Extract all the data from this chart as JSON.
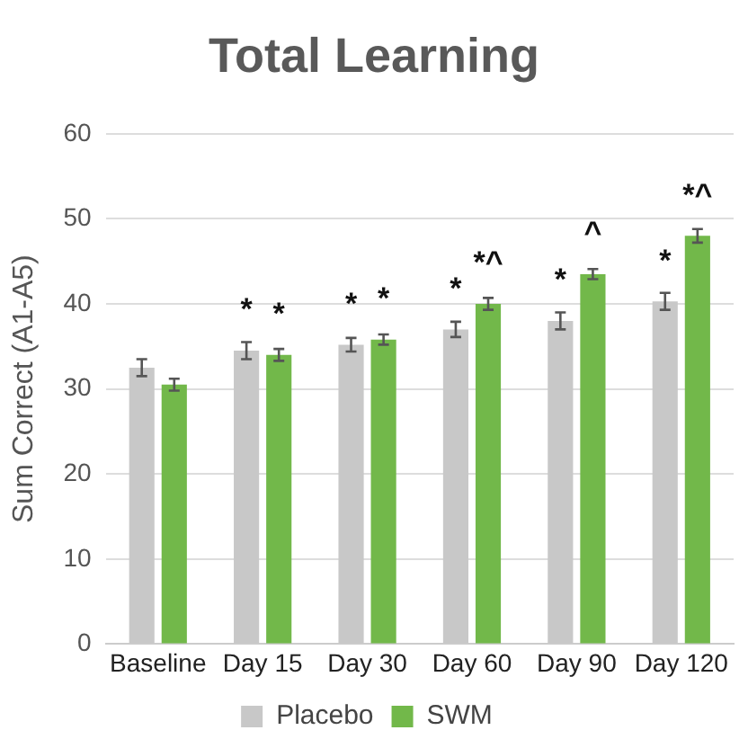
{
  "chart_data": {
    "type": "bar",
    "title": "Total Learning",
    "ylabel": "Sum Correct (A1-A5)",
    "categories": [
      "Baseline",
      "Day 15",
      "Day 30",
      "Day 60",
      "Day 90",
      "Day 120"
    ],
    "series": [
      {
        "name": "Placebo",
        "color": "#c8c8c8",
        "values": [
          32.5,
          34.5,
          35.2,
          37,
          38,
          40.3
        ],
        "errors": [
          1,
          1,
          0.8,
          0.9,
          1,
          1
        ]
      },
      {
        "name": "SWM",
        "color": "#72b84a",
        "values": [
          30.5,
          34,
          35.8,
          40,
          43.5,
          48
        ],
        "errors": [
          0.7,
          0.7,
          0.6,
          0.7,
          0.6,
          0.8
        ]
      }
    ],
    "ylim": [
      0,
      60
    ],
    "yticks": [
      0,
      10,
      20,
      30,
      40,
      50,
      60
    ],
    "grid": "y",
    "legend": "bottom",
    "annotations": [
      {
        "text": "*",
        "x": "Day 15",
        "y": 34.5
      },
      {
        "text": "*",
        "x": "Day 15",
        "y": 34
      },
      {
        "text": "*",
        "x": "Day 30",
        "y": 35.2
      },
      {
        "text": "*",
        "x": "Day 30",
        "y": 35.8
      },
      {
        "text": "*",
        "x": "Day 60",
        "y": 37
      },
      {
        "text": "*^",
        "x": "Day 60",
        "y": 40
      },
      {
        "text": "*",
        "x": "Day 90",
        "y": 38
      },
      {
        "text": "^",
        "x": "Day 90",
        "y": 43.5
      },
      {
        "text": "*",
        "x": "Day 120",
        "y": 40.3
      },
      {
        "text": "*^",
        "x": "Day 120",
        "y": 48
      }
    ]
  }
}
